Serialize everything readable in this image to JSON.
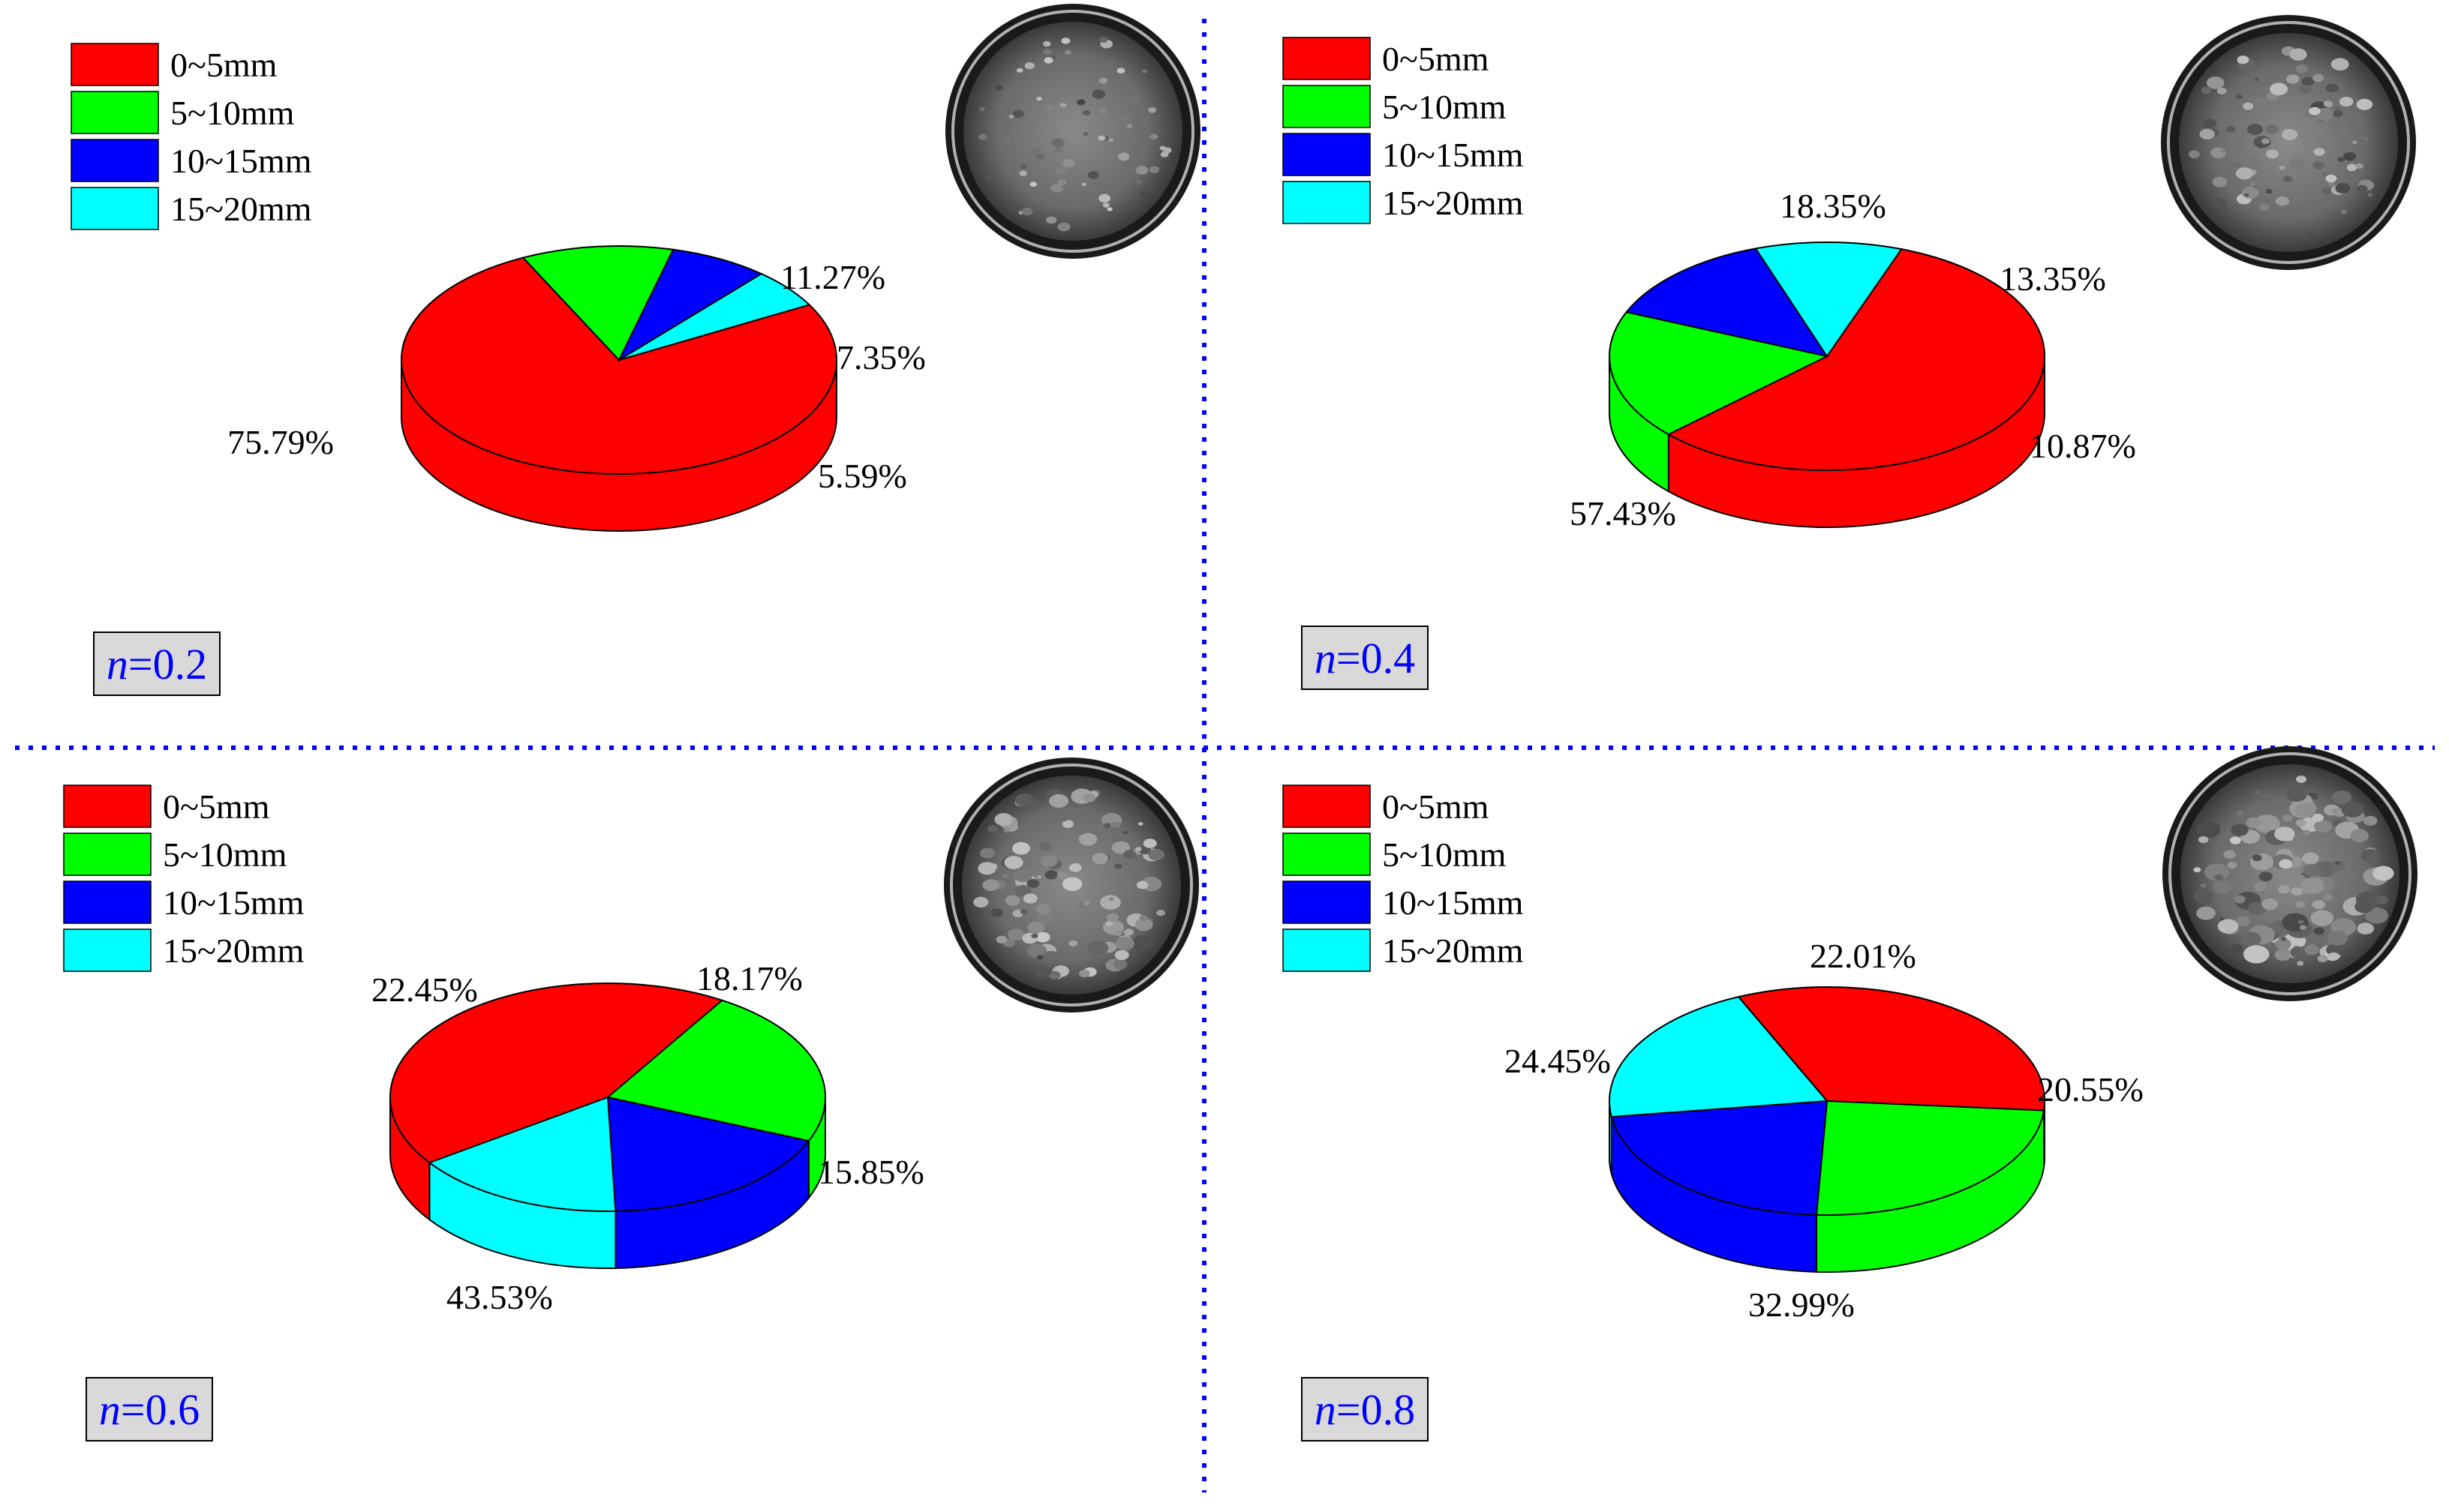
{
  "colors": {
    "c0_5": "#ff0000",
    "c5_10": "#00ff00",
    "c10_15": "#0000ff",
    "c15_20": "#00ffff",
    "divider": "#0000ff",
    "nbox_fill": "#d9d9d9",
    "nbox_text": "#0000ff"
  },
  "legend_labels": [
    "0~5mm",
    "5~10mm",
    "10~15mm",
    "15~20mm"
  ],
  "photo_description_icon": "sample-dish-photo",
  "chart_data": [
    {
      "type": "pie",
      "style": "3d",
      "panel": "top-left",
      "n_label": "n=0.2",
      "n_var": "n",
      "n_value": "=0.2",
      "categories": [
        "0~5mm",
        "5~10mm",
        "10~15mm",
        "15~20mm"
      ],
      "values": [
        75.79,
        11.27,
        7.35,
        5.59
      ],
      "value_labels": [
        "75.79%",
        "11.27%",
        "7.35%",
        "5.59%"
      ],
      "start_angle_deg": -29,
      "legend": "top-left"
    },
    {
      "type": "pie",
      "style": "3d",
      "panel": "top-right",
      "n_label": "n=0.4",
      "n_var": "n",
      "n_value": "=0.4",
      "categories": [
        "0~5mm",
        "5~10mm",
        "10~15mm",
        "15~20mm"
      ],
      "values": [
        57.43,
        18.35,
        13.35,
        10.87
      ],
      "value_labels": [
        "57.43%",
        "18.35%",
        "13.35%",
        "10.87%"
      ],
      "start_angle_deg": -70,
      "legend": "top-left"
    },
    {
      "type": "pie",
      "style": "3d",
      "panel": "bottom-left",
      "n_label": "n=0.6",
      "n_var": "n",
      "n_value": "=0.6",
      "categories": [
        "0~5mm",
        "5~10mm",
        "10~15mm",
        "15~20mm"
      ],
      "values": [
        43.53,
        22.45,
        18.17,
        15.85
      ],
      "value_labels": [
        "43.53%",
        "22.45%",
        "18.17%",
        "15.85%"
      ],
      "start_angle_deg": -215,
      "legend": "top-left"
    },
    {
      "type": "pie",
      "style": "3d",
      "panel": "bottom-right",
      "n_label": "n=0.8",
      "n_var": "n",
      "n_value": "=0.8",
      "categories": [
        "0~5mm",
        "5~10mm",
        "10~15mm",
        "15~20mm"
      ],
      "values": [
        32.99,
        24.45,
        22.01,
        20.55
      ],
      "value_labels": [
        "32.99%",
        "24.45%",
        "22.01%",
        "20.55%"
      ],
      "start_angle_deg": -114,
      "legend": "top-left"
    }
  ]
}
